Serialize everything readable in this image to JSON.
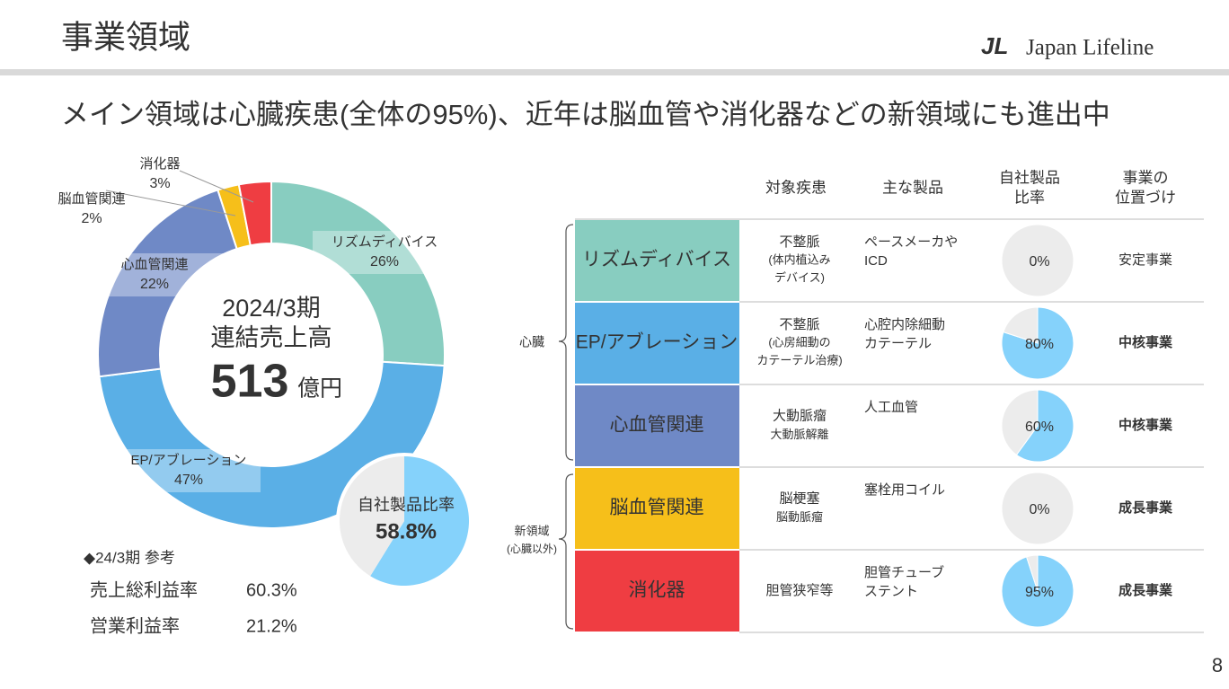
{
  "header": {
    "title": "事業領域",
    "logo_mark": "JL",
    "logo_text": "Japan Lifeline"
  },
  "headline": "メイン領域は心臓疾患(全体の95%)、近年は脳血管や消化器などの新領域にも進出中",
  "chart_data": [
    {
      "type": "donut",
      "center_lines": [
        "2024/3期",
        "連結売上高"
      ],
      "total": "513",
      "total_unit": "億円",
      "categories": [
        "リズムディバイス",
        "EP/アブレーション",
        "心血管関連",
        "脳血管関連",
        "消化器"
      ],
      "values": [
        26,
        47,
        22,
        2,
        3
      ],
      "value_labels": [
        "26%",
        "47%",
        "22%",
        "2%",
        "3%"
      ],
      "colors": [
        "#88cdc0",
        "#5aafe6",
        "#6f89c6",
        "#f6bf1a",
        "#ef3d42"
      ]
    },
    {
      "type": "pie",
      "title": "自社製品比率",
      "values": [
        58.8,
        41.2
      ],
      "value_labels": [
        "58.8%",
        null
      ],
      "colors": [
        "#85d2fb",
        "#ececec"
      ]
    },
    {
      "type": "pie",
      "values": [
        0,
        100
      ],
      "value_labels": [
        "0%",
        null
      ],
      "colors": [
        "#85d2fb",
        "#ececec"
      ]
    },
    {
      "type": "pie",
      "values": [
        80,
        20
      ],
      "value_labels": [
        "80%",
        null
      ],
      "colors": [
        "#85d2fb",
        "#ececec"
      ]
    },
    {
      "type": "pie",
      "values": [
        60,
        40
      ],
      "value_labels": [
        "60%",
        null
      ],
      "colors": [
        "#85d2fb",
        "#ececec"
      ]
    },
    {
      "type": "pie",
      "values": [
        0,
        100
      ],
      "value_labels": [
        "0%",
        null
      ],
      "colors": [
        "#85d2fb",
        "#ececec"
      ]
    },
    {
      "type": "pie",
      "values": [
        95,
        5
      ],
      "value_labels": [
        "95%",
        null
      ],
      "colors": [
        "#85d2fb",
        "#ececec"
      ]
    }
  ],
  "reference": {
    "title": "◆24/3期 参考",
    "rows": [
      [
        "売上総利益率",
        "60.3%"
      ],
      [
        "営業利益率",
        "21.2%"
      ]
    ]
  },
  "table": {
    "columns": [
      [
        "対象疾患"
      ],
      [
        "主な製品"
      ],
      [
        "自社製品",
        "比率"
      ],
      [
        "事業の",
        "位置づけ"
      ]
    ],
    "groups": [
      [
        "心臓"
      ],
      [
        "新領域",
        "(心臓以外)"
      ]
    ],
    "rows": [
      {
        "segment": "リズムディバイス",
        "color": "#88cdc0",
        "disease": [
          "不整脈",
          "(体内植込み",
          "デバイス)"
        ],
        "product": [
          "ペースメーカや",
          "ICD"
        ],
        "position": "安定事業",
        "position_color": "#333333"
      },
      {
        "segment": "EP/アブレーション",
        "color": "#5aafe6",
        "disease": [
          "不整脈",
          "(心房細動の",
          "カテーテル治療)"
        ],
        "product": [
          "心腔内除細動",
          "カテーテル"
        ],
        "position": "中核事業",
        "position_color": "#1e87c5"
      },
      {
        "segment": "心血管関連",
        "color": "#6f89c6",
        "disease": [
          "大動脈瘤",
          "大動脈解離"
        ],
        "product": [
          "人工血管"
        ],
        "position": "中核事業",
        "position_color": "#1e87c5"
      },
      {
        "segment": "脳血管関連",
        "color": "#f6bf1a",
        "disease": [
          "脳梗塞",
          "脳動脈瘤"
        ],
        "product": [
          "塞栓用コイル"
        ],
        "position": "成長事業",
        "position_color": "#e8413f"
      },
      {
        "segment": "消化器",
        "color": "#ef3d42",
        "disease": [
          "胆管狭窄等"
        ],
        "product": [
          "胆管チューブ",
          "ステント"
        ],
        "position": "成長事業",
        "position_color": "#e8413f"
      }
    ]
  },
  "page_number": "8"
}
